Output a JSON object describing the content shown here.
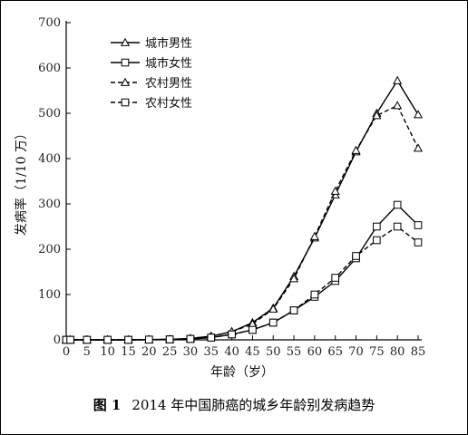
{
  "caption": {
    "figure_no": "图 1",
    "text": "2014 年中国肺癌的城乡年龄别发病趋势"
  },
  "chart_data": {
    "type": "line",
    "xlabel": "年龄（岁）",
    "ylabel": "发病率（1/10 万）",
    "x": [
      0,
      1,
      5,
      10,
      15,
      20,
      25,
      30,
      35,
      40,
      45,
      50,
      55,
      60,
      65,
      70,
      75,
      80,
      85
    ],
    "x_ticks": [
      0,
      5,
      10,
      15,
      20,
      25,
      30,
      35,
      40,
      45,
      50,
      55,
      60,
      65,
      70,
      75,
      80,
      85
    ],
    "xlim": [
      0,
      85
    ],
    "ylim": [
      0,
      700
    ],
    "y_ticks": [
      0,
      100,
      200,
      300,
      400,
      500,
      600,
      700
    ],
    "grid": false,
    "legend_position": "top-left",
    "series": [
      {
        "name": "城市男性",
        "marker": "triangle",
        "dash": "solid",
        "values": [
          0,
          0,
          0,
          0,
          0,
          0.5,
          1,
          3,
          8,
          18,
          38,
          70,
          140,
          225,
          320,
          415,
          500,
          572,
          497
        ]
      },
      {
        "name": "城市女性",
        "marker": "square",
        "dash": "solid",
        "values": [
          0,
          0,
          0,
          0,
          0,
          0.5,
          1,
          2,
          5,
          12,
          22,
          38,
          65,
          95,
          130,
          180,
          250,
          298,
          253
        ]
      },
      {
        "name": "农村男性",
        "marker": "triangle",
        "dash": "dashed",
        "values": [
          0,
          0,
          0,
          0,
          0,
          0.5,
          1,
          3,
          8,
          18,
          35,
          68,
          135,
          228,
          328,
          418,
          495,
          517,
          423
        ]
      },
      {
        "name": "农村女性",
        "marker": "square",
        "dash": "dashed",
        "values": [
          0,
          0,
          0,
          0,
          0,
          0.5,
          1,
          2,
          5,
          12,
          22,
          38,
          65,
          100,
          137,
          185,
          220,
          250,
          215
        ]
      }
    ]
  }
}
